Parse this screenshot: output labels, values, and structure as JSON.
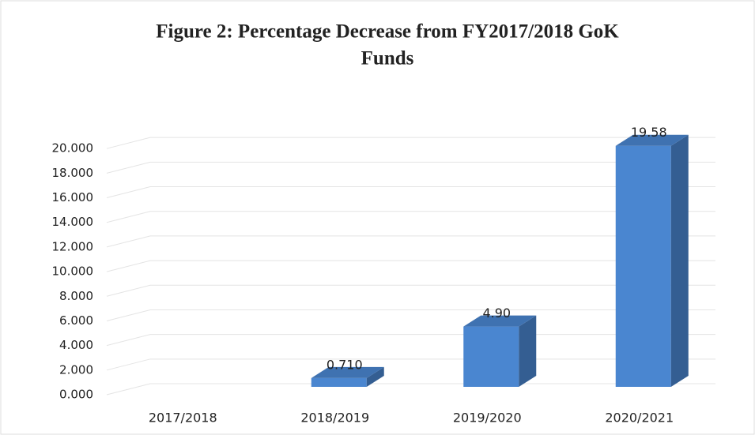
{
  "chart_data": {
    "type": "bar3d",
    "title": "Figure 2: Percentage Decrease from FY2017/2018 GoK",
    "title_line2": "Funds",
    "categories": [
      "2017/2018",
      "2018/2019",
      "2019/2020",
      "2020/2021"
    ],
    "values": [
      0,
      0.71,
      4.9,
      19.58
    ],
    "value_labels": [
      null,
      "0.710",
      "4.90",
      "19.58"
    ],
    "color": "#4a86d0",
    "ylim": [
      0,
      22
    ],
    "yticks": [
      {
        "value": 0,
        "label": "0.000"
      },
      {
        "value": 2,
        "label": "2.000"
      },
      {
        "value": 4,
        "label": "4.000"
      },
      {
        "value": 6,
        "label": "6.000"
      },
      {
        "value": 8,
        "label": "8.000"
      },
      {
        "value": 10,
        "label": "10.000"
      },
      {
        "value": 12,
        "label": "12.000"
      },
      {
        "value": 14,
        "label": "14.000"
      },
      {
        "value": 16,
        "label": "16.000"
      },
      {
        "value": 18,
        "label": "18.000"
      },
      {
        "value": 20,
        "label": "20.000"
      }
    ],
    "grid": true
  }
}
